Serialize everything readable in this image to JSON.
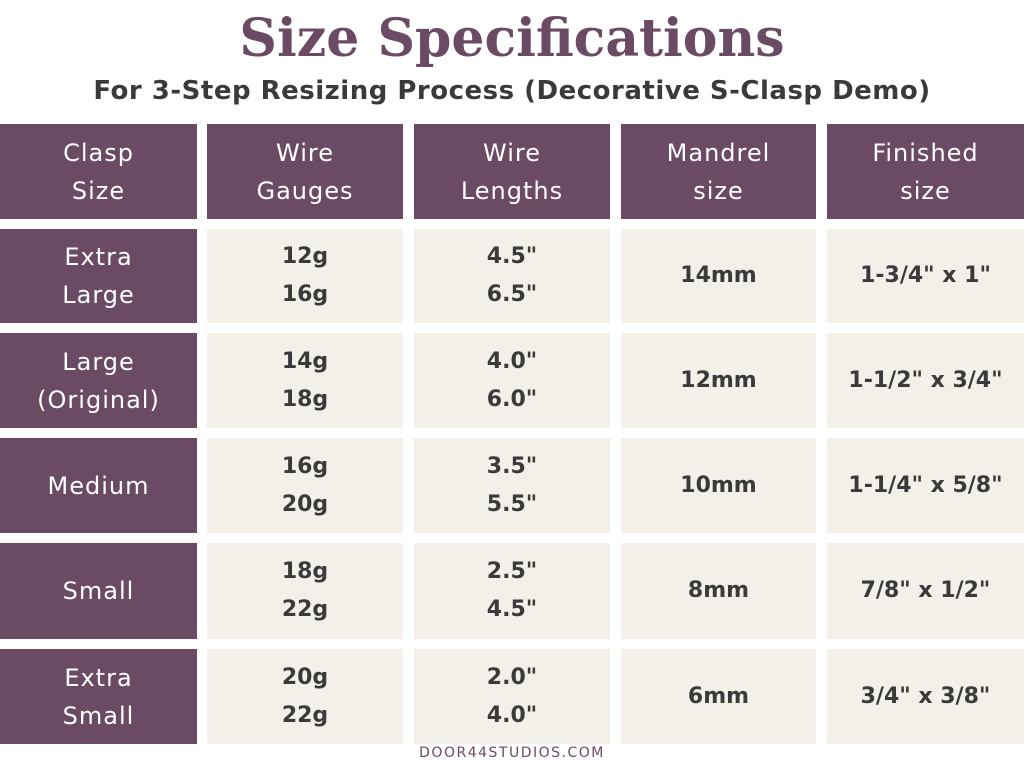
{
  "header": {
    "title": "Size Specifications",
    "subtitle": "For 3-Step Resizing Process (Decorative S-Clasp Demo)"
  },
  "table": {
    "columns": [
      [
        "Clasp",
        "Size"
      ],
      [
        "Wire",
        "Gauges"
      ],
      [
        "Wire",
        "Lengths"
      ],
      [
        "Mandrel",
        "size"
      ],
      [
        "Finished",
        "size"
      ]
    ],
    "rows": [
      [
        [
          "Extra",
          "Large"
        ],
        [
          "12g",
          "16g"
        ],
        [
          "4.5\"",
          "6.5\""
        ],
        [
          "14mm"
        ],
        [
          "1-3/4\" x 1\""
        ]
      ],
      [
        [
          "Large",
          "(Original)"
        ],
        [
          "14g",
          "18g"
        ],
        [
          "4.0\"",
          "6.0\""
        ],
        [
          "12mm"
        ],
        [
          "1-1/2\" x 3/4\""
        ]
      ],
      [
        [
          "Medium"
        ],
        [
          "16g",
          "20g"
        ],
        [
          "3.5\"",
          "5.5\""
        ],
        [
          "10mm"
        ],
        [
          "1-1/4\" x 5/8\""
        ]
      ],
      [
        [
          "Small"
        ],
        [
          "18g",
          "22g"
        ],
        [
          "2.5\"",
          "4.5\""
        ],
        [
          "8mm"
        ],
        [
          "7/8\" x 1/2\""
        ]
      ],
      [
        [
          "Extra",
          "Small"
        ],
        [
          "20g",
          "22g"
        ],
        [
          "2.0\"",
          "4.0\""
        ],
        [
          "6mm"
        ],
        [
          "3/4\" x 3/8\""
        ]
      ]
    ]
  },
  "footer": {
    "credit": "DOOR44STUDIOS.COM"
  }
}
